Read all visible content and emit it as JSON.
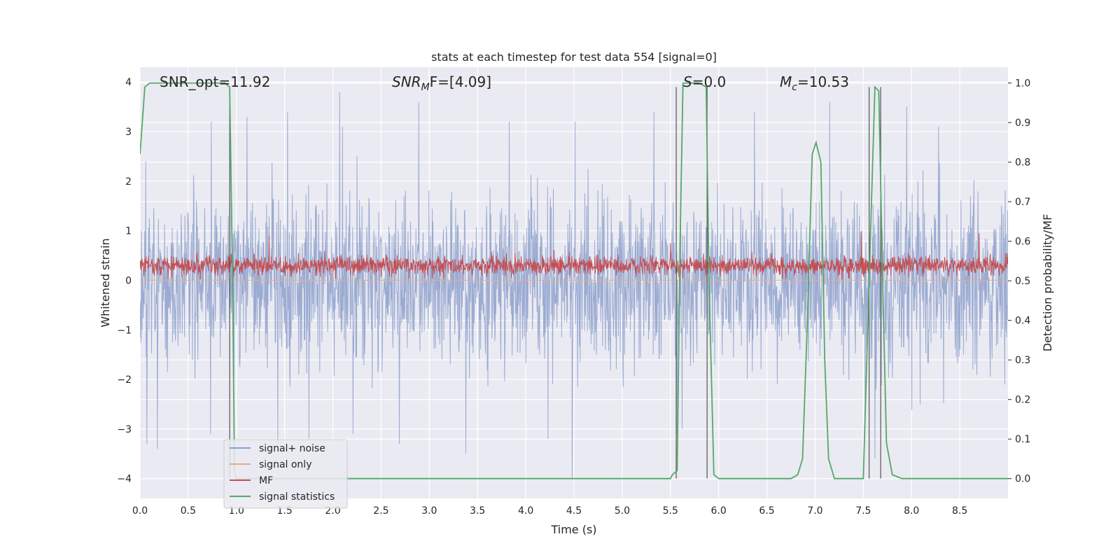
{
  "chart_data": {
    "type": "line",
    "title": "stats at each timestep for test data 554 [signal=0]",
    "xlabel": "Time (s)",
    "ylabel_left": "Whitened strain",
    "ylabel_right": "Detection probability/MF",
    "xlim": [
      0,
      9.0
    ],
    "ylim_left": [
      -4.4,
      4.3
    ],
    "ylim_right": [
      -0.05,
      1.04
    ],
    "xticks": [
      0.0,
      0.5,
      1.0,
      1.5,
      2.0,
      2.5,
      3.0,
      3.5,
      4.0,
      4.5,
      5.0,
      5.5,
      6.0,
      6.5,
      7.0,
      7.5,
      8.0,
      8.5
    ],
    "xtick_labels": [
      "0.0",
      "0.5",
      "1.0",
      "1.5",
      "2.0",
      "2.5",
      "3.0",
      "3.5",
      "4.0",
      "4.5",
      "5.0",
      "5.5",
      "6.0",
      "6.5",
      "7.0",
      "7.5",
      "8.0",
      "8.5"
    ],
    "yticks_left": [
      4,
      3,
      2,
      1,
      0,
      -1,
      -2,
      -3,
      -4
    ],
    "ytick_labels_left": [
      "4",
      "3",
      "2",
      "1",
      "0",
      "−1",
      "−2",
      "−3",
      "−4"
    ],
    "yticks_right": [
      1.0,
      0.9,
      0.8,
      0.7,
      0.6,
      0.5,
      0.4,
      0.3,
      0.2,
      0.1,
      0.0
    ],
    "ytick_labels_right": [
      "1.0",
      "0.9",
      "0.8",
      "0.7",
      "0.6",
      "0.5",
      "0.4",
      "0.3",
      "0.2",
      "0.1",
      "0.0"
    ],
    "grid": true,
    "annotations": {
      "snr_opt": "SNR_opt=11.92",
      "snr_mf_sym": "SNR",
      "snr_mf_sub": "M",
      "snr_mf_rest": "F=[4.09]",
      "s_sym": "S",
      "s_rest": "=0.0",
      "mc_sym": "M",
      "mc_sub": "c",
      "mc_rest": "=10.53"
    },
    "series": [
      {
        "name": "signal+ noise",
        "color": "#8da0cb",
        "style": "noise",
        "axis": "left",
        "typical_amplitude": 1.6,
        "peak_amplitude": 3.4,
        "spikes": [
          {
            "x": 0.06,
            "y": 2.4
          },
          {
            "x": 0.07,
            "y": -3.3
          },
          {
            "x": 0.18,
            "y": -3.4
          },
          {
            "x": 0.74,
            "y": 3.2
          },
          {
            "x": 0.73,
            "y": -3.1
          },
          {
            "x": 1.11,
            "y": 3.3
          },
          {
            "x": 1.43,
            "y": -3.3
          },
          {
            "x": 1.53,
            "y": 3.4
          },
          {
            "x": 1.75,
            "y": -3.2
          },
          {
            "x": 2.07,
            "y": 3.8
          },
          {
            "x": 2.1,
            "y": 3.1
          },
          {
            "x": 2.21,
            "y": -3.1
          },
          {
            "x": 2.69,
            "y": -3.3
          },
          {
            "x": 2.89,
            "y": 3.6
          },
          {
            "x": 3.38,
            "y": -3.5
          },
          {
            "x": 3.83,
            "y": 3.2
          },
          {
            "x": 4.23,
            "y": -3.2
          },
          {
            "x": 4.48,
            "y": -4.0
          },
          {
            "x": 4.51,
            "y": 3.2
          },
          {
            "x": 5.33,
            "y": 3.4
          },
          {
            "x": 5.57,
            "y": -3.1
          },
          {
            "x": 5.62,
            "y": -3.0
          },
          {
            "x": 6.37,
            "y": 3.4
          },
          {
            "x": 7.15,
            "y": 3.6
          },
          {
            "x": 7.52,
            "y": -3.0
          },
          {
            "x": 7.62,
            "y": -3.6
          },
          {
            "x": 7.95,
            "y": 3.5
          },
          {
            "x": 8.28,
            "y": 3.1
          }
        ]
      },
      {
        "name": "signal only",
        "color": "#e5a98a",
        "style": "flat",
        "axis": "left",
        "value": 0.0
      },
      {
        "name": "MF",
        "color": "#c44e52",
        "style": "noise",
        "axis": "left",
        "center": 0.3,
        "typical_amplitude": 0.3,
        "peak_amplitude": 0.9,
        "spikes": [
          {
            "x": 1.34,
            "y": 0.9
          },
          {
            "x": 5.5,
            "y": 0.75
          },
          {
            "x": 7.48,
            "y": 1.0
          },
          {
            "x": 8.7,
            "y": 0.95
          }
        ]
      },
      {
        "name": "signal statistics",
        "color": "#55a868",
        "style": "line",
        "axis": "right",
        "x": [
          0.0,
          0.05,
          0.1,
          0.2,
          0.3,
          0.4,
          0.5,
          0.6,
          0.7,
          0.8,
          0.88,
          0.93,
          0.96,
          0.98,
          1.0,
          1.05,
          1.5,
          2.0,
          2.5,
          3.0,
          3.5,
          4.0,
          4.5,
          5.0,
          5.5,
          5.52,
          5.57,
          5.6,
          5.63,
          5.7,
          5.8,
          5.87,
          5.9,
          5.95,
          6.0,
          6.5,
          6.75,
          6.82,
          6.87,
          6.92,
          6.97,
          7.01,
          7.06,
          7.1,
          7.14,
          7.2,
          7.3,
          7.4,
          7.5,
          7.56,
          7.62,
          7.66,
          7.7,
          7.74,
          7.8,
          7.9,
          8.0,
          8.5,
          9.0
        ],
        "y": [
          0.82,
          0.99,
          1.0,
          1.0,
          1.0,
          1.0,
          1.0,
          1.0,
          1.0,
          1.0,
          1.0,
          0.99,
          0.5,
          0.02,
          0.0,
          0.0,
          0.0,
          0.0,
          0.0,
          0.0,
          0.0,
          0.0,
          0.0,
          0.0,
          0.0,
          0.01,
          0.02,
          0.6,
          1.0,
          1.0,
          1.0,
          0.99,
          0.5,
          0.01,
          0.0,
          0.0,
          0.0,
          0.01,
          0.05,
          0.4,
          0.82,
          0.85,
          0.8,
          0.3,
          0.05,
          0.0,
          0.0,
          0.0,
          0.0,
          0.5,
          0.99,
          0.98,
          0.5,
          0.09,
          0.01,
          0.0,
          0.0,
          0.0,
          0.0
        ]
      }
    ],
    "vlines": [
      {
        "x": 0.93,
        "ymin": -4.0,
        "ymax": 3.9
      },
      {
        "x": 5.56,
        "ymin": -4.0,
        "ymax": 3.9
      },
      {
        "x": 5.88,
        "ymin": -4.0,
        "ymax": 3.9
      },
      {
        "x": 7.56,
        "ymin": -4.0,
        "ymax": 3.9
      },
      {
        "x": 7.68,
        "ymin": -4.0,
        "ymax": 3.9
      }
    ],
    "legend": {
      "placement": "lower-left",
      "entries": [
        "signal+ noise",
        "signal only",
        "MF",
        "signal statistics"
      ]
    }
  }
}
